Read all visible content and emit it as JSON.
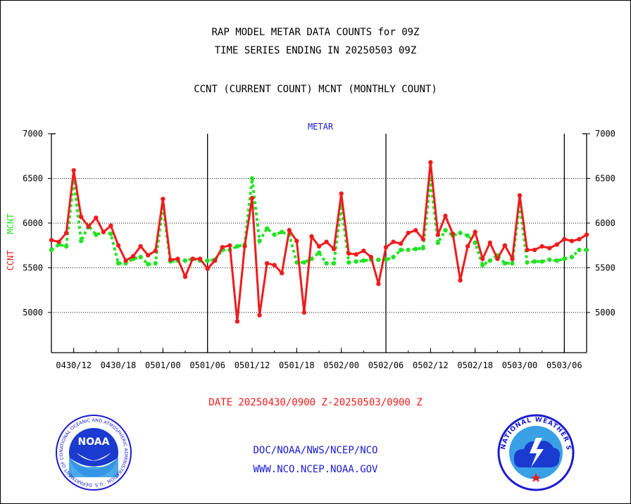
{
  "titles": {
    "line1": "RAP MODEL METAR DATA COUNTS for 09Z",
    "line2": "TIME SERIES ENDING IN 20250503 09Z",
    "line3": "CCNT (CURRENT COUNT) MCNT (MONTHLY COUNT)"
  },
  "footer": {
    "date_range": "DATE 20250430/0900 Z-20250503/0900 Z",
    "org": "DOC/NOAA/NWS/NCEP/NCO",
    "url": "WWW.NCO.NCEP.NOAA.GOV"
  },
  "logos": {
    "left": {
      "icon": "noaa-logo",
      "text": "NOAA",
      "ring_text": "NATIONAL OCEANIC AND ATMOSPHERIC ADMINISTRATION · U.S. DEPARTMENT OF COMMERCE"
    },
    "right": {
      "icon": "nws-logo",
      "ring_text": "NATIONAL WEATHER SERVICE"
    }
  },
  "chart_data": {
    "type": "line",
    "title": "METAR",
    "ylabel_ccnt": "CCNT",
    "ylabel_mcnt": "MCNT",
    "ylim": [
      4550,
      7000
    ],
    "yticks": [
      5000,
      5500,
      6000,
      6500,
      7000
    ],
    "xlim": [
      0,
      72
    ],
    "xticks": [
      {
        "pos": 3,
        "label": "0430/12"
      },
      {
        "pos": 9,
        "label": "0430/18"
      },
      {
        "pos": 15,
        "label": "0501/00"
      },
      {
        "pos": 21,
        "label": "0501/06"
      },
      {
        "pos": 27,
        "label": "0501/12"
      },
      {
        "pos": 33,
        "label": "0501/18"
      },
      {
        "pos": 39,
        "label": "0502/00"
      },
      {
        "pos": 45,
        "label": "0502/06"
      },
      {
        "pos": 51,
        "label": "0502/12"
      },
      {
        "pos": 57,
        "label": "0502/18"
      },
      {
        "pos": 63,
        "label": "0503/00"
      },
      {
        "pos": 69,
        "label": "0503/06"
      }
    ],
    "day_boundaries": [
      21,
      45,
      69
    ],
    "grid": "horizontal dotted",
    "colors": {
      "ccnt": "#ee1c1c",
      "mcnt": "#22e322",
      "title": "#1a1ad0",
      "axis": "#000000"
    },
    "series": [
      {
        "name": "CCNT",
        "values": [
          5810,
          5790,
          5890,
          6590,
          6070,
          5960,
          6060,
          5900,
          5970,
          5750,
          5580,
          5630,
          5740,
          5640,
          5690,
          6270,
          5590,
          5600,
          5400,
          5600,
          5600,
          5490,
          5580,
          5730,
          5750,
          4900,
          5740,
          6280,
          4970,
          5550,
          5530,
          5440,
          5920,
          5800,
          5000,
          5850,
          5740,
          5790,
          5710,
          6330,
          5660,
          5650,
          5690,
          5620,
          5320,
          5730,
          5790,
          5770,
          5890,
          5920,
          5820,
          6680,
          5870,
          6080,
          5880,
          5360,
          5740,
          5900,
          5600,
          5780,
          5600,
          5750,
          5600,
          6310,
          5700,
          5700,
          5740,
          5720,
          5760,
          5820,
          5800,
          5820,
          5870
        ]
      },
      {
        "name": "MCNT",
        "values": [
          5700,
          5760,
          5740,
          6480,
          5800,
          5970,
          5870,
          5900,
          5880,
          5550,
          5550,
          5600,
          5620,
          5540,
          5550,
          6200,
          5570,
          5580,
          5580,
          5600,
          5580,
          5580,
          5590,
          5700,
          5700,
          5740,
          5760,
          6500,
          5800,
          5940,
          5870,
          5900,
          5870,
          5560,
          5560,
          5600,
          5670,
          5550,
          5550,
          6200,
          5560,
          5570,
          5580,
          5590,
          5590,
          5590,
          5620,
          5700,
          5700,
          5710,
          5720,
          6490,
          5780,
          5920,
          5860,
          5890,
          5860,
          5780,
          5530,
          5580,
          5640,
          5550,
          5550,
          6220,
          5560,
          5570,
          5570,
          5590,
          5580,
          5600,
          5620,
          5700,
          5700
        ]
      }
    ]
  }
}
